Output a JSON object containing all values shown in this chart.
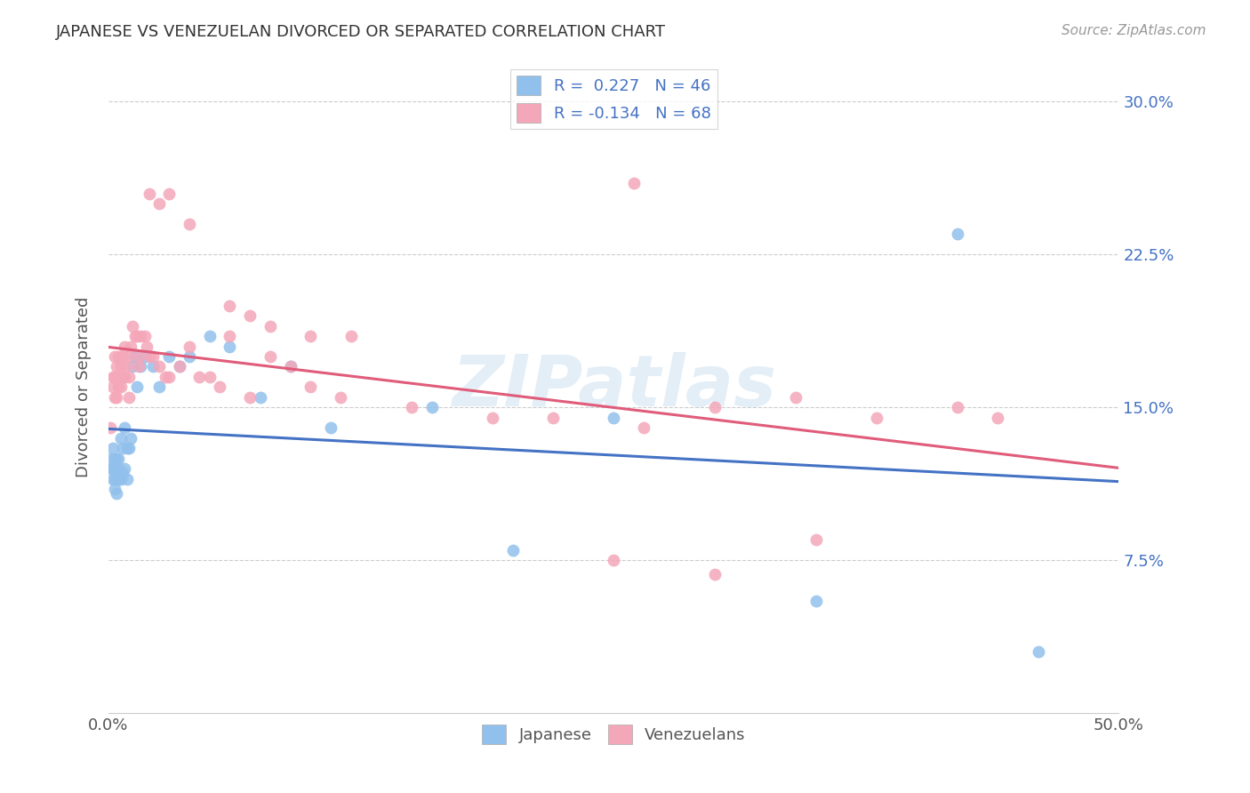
{
  "title": "JAPANESE VS VENEZUELAN DIVORCED OR SEPARATED CORRELATION CHART",
  "source": "Source: ZipAtlas.com",
  "ylabel": "Divorced or Separated",
  "xlim": [
    0.0,
    0.5
  ],
  "ylim": [
    0.0,
    0.32
  ],
  "xticks": [
    0.0,
    0.1,
    0.2,
    0.3,
    0.4,
    0.5
  ],
  "xtick_labels": [
    "0.0%",
    "",
    "",
    "",
    "",
    "50.0%"
  ],
  "ytick_labels_right": [
    "7.5%",
    "15.0%",
    "22.5%",
    "30.0%"
  ],
  "ytick_vals_right": [
    0.075,
    0.15,
    0.225,
    0.3
  ],
  "watermark": "ZIPatlas",
  "legend_R_japanese": "0.227",
  "legend_N_japanese": "46",
  "legend_R_venezuelan": "-0.134",
  "legend_N_venezuelan": "68",
  "color_japanese": "#92C0EC",
  "color_venezuelan": "#F4A7B9",
  "color_line_japanese": "#4472C4",
  "color_line_venezuelan": "#E05C7A",
  "japanese_x": [
    0.001,
    0.001,
    0.002,
    0.002,
    0.002,
    0.003,
    0.003,
    0.003,
    0.003,
    0.004,
    0.004,
    0.004,
    0.005,
    0.005,
    0.005,
    0.006,
    0.006,
    0.007,
    0.007,
    0.008,
    0.008,
    0.009,
    0.009,
    0.01,
    0.011,
    0.012,
    0.013,
    0.014,
    0.016,
    0.018,
    0.022,
    0.025,
    0.03,
    0.035,
    0.04,
    0.05,
    0.06,
    0.075,
    0.09,
    0.11,
    0.16,
    0.2,
    0.25,
    0.35,
    0.42,
    0.46
  ],
  "japanese_y": [
    0.125,
    0.12,
    0.13,
    0.115,
    0.12,
    0.125,
    0.12,
    0.115,
    0.11,
    0.125,
    0.118,
    0.108,
    0.125,
    0.12,
    0.115,
    0.135,
    0.115,
    0.13,
    0.118,
    0.14,
    0.12,
    0.13,
    0.115,
    0.13,
    0.135,
    0.17,
    0.175,
    0.16,
    0.17,
    0.175,
    0.17,
    0.16,
    0.175,
    0.17,
    0.175,
    0.185,
    0.18,
    0.155,
    0.17,
    0.14,
    0.15,
    0.08,
    0.145,
    0.055,
    0.235,
    0.03
  ],
  "venezuelan_x": [
    0.001,
    0.002,
    0.002,
    0.003,
    0.003,
    0.003,
    0.004,
    0.004,
    0.005,
    0.005,
    0.005,
    0.006,
    0.006,
    0.007,
    0.007,
    0.008,
    0.008,
    0.009,
    0.01,
    0.01,
    0.011,
    0.012,
    0.013,
    0.014,
    0.015,
    0.016,
    0.018,
    0.019,
    0.02,
    0.022,
    0.025,
    0.028,
    0.03,
    0.035,
    0.04,
    0.045,
    0.05,
    0.055,
    0.06,
    0.07,
    0.08,
    0.09,
    0.1,
    0.115,
    0.12,
    0.15,
    0.19,
    0.22,
    0.265,
    0.3,
    0.34,
    0.38,
    0.42,
    0.44,
    0.25,
    0.3,
    0.35,
    0.26,
    0.06,
    0.07,
    0.08,
    0.1,
    0.02,
    0.025,
    0.03,
    0.04,
    0.015,
    0.01
  ],
  "venezuelan_y": [
    0.14,
    0.165,
    0.16,
    0.155,
    0.165,
    0.175,
    0.155,
    0.17,
    0.165,
    0.175,
    0.16,
    0.16,
    0.17,
    0.165,
    0.175,
    0.18,
    0.165,
    0.17,
    0.165,
    0.175,
    0.18,
    0.19,
    0.185,
    0.185,
    0.175,
    0.185,
    0.185,
    0.18,
    0.175,
    0.175,
    0.17,
    0.165,
    0.165,
    0.17,
    0.18,
    0.165,
    0.165,
    0.16,
    0.185,
    0.155,
    0.175,
    0.17,
    0.16,
    0.155,
    0.185,
    0.15,
    0.145,
    0.145,
    0.14,
    0.15,
    0.155,
    0.145,
    0.15,
    0.145,
    0.075,
    0.068,
    0.085,
    0.26,
    0.2,
    0.195,
    0.19,
    0.185,
    0.255,
    0.25,
    0.255,
    0.24,
    0.17,
    0.155
  ]
}
